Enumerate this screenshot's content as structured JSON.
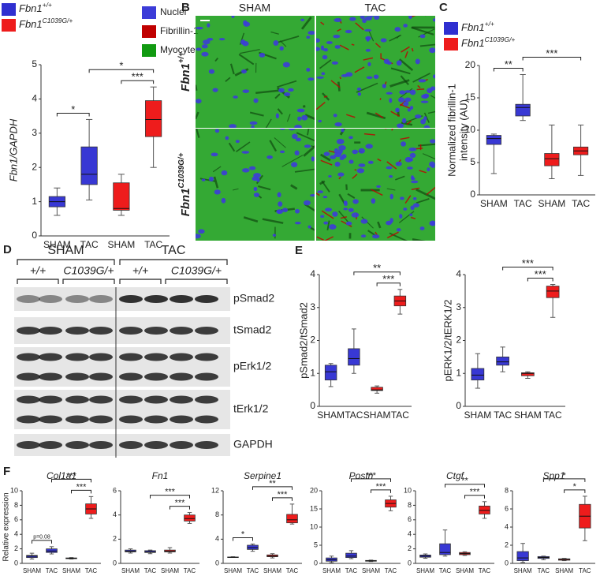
{
  "panel_labels": [
    "A",
    "B",
    "C",
    "D",
    "E",
    "F"
  ],
  "micrographs": {
    "columns": [
      "SHAM",
      "TAC"
    ],
    "rows": [
      {
        "name": "Fbn1",
        "sup": "+/+"
      },
      {
        "name": "Fbn1",
        "sup": "C1039G/+"
      }
    ],
    "legend": [
      {
        "name": "Nuclei",
        "color": "#3c3cd8"
      },
      {
        "name": "Fibrillin-1",
        "color": "#c00000"
      },
      {
        "name": "Myocyte",
        "color": "#119a11"
      }
    ]
  },
  "blot": {
    "groups": [
      "SHAM",
      "TAC"
    ],
    "genotypes": [
      "+/+",
      "C1039G/+",
      "+/+",
      "C1039G/+"
    ],
    "bands": [
      "pSmad2",
      "tSmad2",
      "pErk1/2",
      "tErk1/2",
      "GAPDH"
    ]
  },
  "chart_data": [
    {
      "type": "box",
      "ylabel": [
        "Fbn1/GAPDH"
      ],
      "ylabel_italic": true,
      "legend": [
        {
          "name": "Fbn1",
          "sup": "+/+",
          "color": "#2f2fd0"
        },
        {
          "name": "Fbn1",
          "sup": "C1039G/+",
          "color": "#ee1c1c"
        }
      ],
      "categories": [
        "SHAM",
        "TAC",
        "SHAM",
        "TAC"
      ],
      "boxes": [
        {
          "color": "#3838d4",
          "min": 0.6,
          "q1": 0.85,
          "median": 1.0,
          "q3": 1.15,
          "max": 1.4
        },
        {
          "color": "#3838d4",
          "min": 1.05,
          "q1": 1.5,
          "median": 1.8,
          "q3": 2.6,
          "max": 3.4
        },
        {
          "color": "#ee1c1c",
          "min": 0.6,
          "q1": 0.75,
          "median": 0.8,
          "q3": 1.55,
          "max": 1.8
        },
        {
          "color": "#ee1c1c",
          "min": 2.0,
          "q1": 2.9,
          "median": 3.4,
          "q3": 3.95,
          "max": 4.35
        }
      ],
      "annotations": [
        {
          "between": [
            0,
            1
          ],
          "text": "*"
        },
        {
          "between": [
            2,
            3
          ],
          "text": "***"
        },
        {
          "between": [
            1,
            3
          ],
          "text": "*"
        }
      ],
      "ylim": [
        0,
        5
      ],
      "yticks": [
        0,
        1,
        2,
        3,
        4,
        5
      ]
    },
    {
      "type": "box",
      "ylabel": [
        "Normalized fibrillin-1",
        "intensity (AU)"
      ],
      "ylabel_italic": false,
      "legend": [
        {
          "name": "Fbn1",
          "sup": "+/+",
          "color": "#2f2fd0"
        },
        {
          "name": "Fbn1",
          "sup": "C1039G/+",
          "color": "#ee1c1c"
        }
      ],
      "categories": [
        "SHAM",
        "TAC",
        "SHAM",
        "TAC"
      ],
      "boxes": [
        {
          "color": "#3838d4",
          "min": 3.3,
          "q1": 7.8,
          "median": 8.7,
          "q3": 9.2,
          "max": 9.4
        },
        {
          "color": "#3838d4",
          "min": 11.5,
          "q1": 12.2,
          "median": 13.5,
          "q3": 14.0,
          "max": 18.6
        },
        {
          "color": "#ee1c1c",
          "min": 2.5,
          "q1": 4.5,
          "median": 5.6,
          "q3": 6.4,
          "max": 10.8
        },
        {
          "color": "#ee1c1c",
          "min": 3.0,
          "q1": 6.2,
          "median": 6.8,
          "q3": 7.4,
          "max": 10.8
        }
      ],
      "annotations": [
        {
          "between": [
            0,
            1
          ],
          "text": "**"
        },
        {
          "between": [
            1,
            3
          ],
          "text": "***"
        }
      ],
      "ylim": [
        0,
        20
      ],
      "yticks": [
        0,
        5,
        10,
        15,
        20
      ]
    },
    {
      "type": "box",
      "ylabel": [
        "pSmad2/tSmad2"
      ],
      "ylabel_italic": false,
      "categories": [
        "SHAM",
        "TAC",
        "SHAM",
        "TAC"
      ],
      "boxes": [
        {
          "color": "#3838d4",
          "min": 0.6,
          "q1": 0.8,
          "median": 1.05,
          "q3": 1.25,
          "max": 1.3
        },
        {
          "color": "#3838d4",
          "min": 1.0,
          "q1": 1.25,
          "median": 1.45,
          "q3": 1.75,
          "max": 2.35
        },
        {
          "color": "#ee1c1c",
          "min": 0.4,
          "q1": 0.48,
          "median": 0.5,
          "q3": 0.58,
          "max": 0.62
        },
        {
          "color": "#ee1c1c",
          "min": 2.8,
          "q1": 3.05,
          "median": 3.2,
          "q3": 3.35,
          "max": 3.55
        }
      ],
      "annotations": [
        {
          "between": [
            2,
            3
          ],
          "text": "***"
        },
        {
          "between": [
            1,
            3
          ],
          "text": "**"
        }
      ],
      "ylim": [
        0,
        4
      ],
      "yticks": [
        0,
        1,
        2,
        3,
        4
      ]
    },
    {
      "type": "box",
      "ylabel": [
        "pERK1/2/tERK1/2"
      ],
      "ylabel_italic": false,
      "categories": [
        "SHAM",
        "TAC",
        "SHAM",
        "TAC"
      ],
      "boxes": [
        {
          "color": "#3838d4",
          "min": 0.55,
          "q1": 0.8,
          "median": 0.95,
          "q3": 1.15,
          "max": 1.6
        },
        {
          "color": "#3838d4",
          "min": 1.05,
          "q1": 1.25,
          "median": 1.35,
          "q3": 1.5,
          "max": 1.8
        },
        {
          "color": "#ee1c1c",
          "min": 0.85,
          "q1": 0.93,
          "median": 1.0,
          "q3": 1.02,
          "max": 1.05
        },
        {
          "color": "#ee1c1c",
          "min": 2.7,
          "q1": 3.3,
          "median": 3.5,
          "q3": 3.65,
          "max": 3.7
        }
      ],
      "annotations": [
        {
          "between": [
            2,
            3
          ],
          "text": "***"
        },
        {
          "between": [
            1,
            3
          ],
          "text": "***"
        }
      ],
      "ylim": [
        0,
        4
      ],
      "yticks": [
        0,
        1,
        2,
        3,
        4
      ]
    },
    {
      "type": "box",
      "title": "Col1a1",
      "ylabel": [
        "Relative expression"
      ],
      "ylabel_italic": false,
      "categories": [
        "SHAM",
        "TAC",
        "SHAM",
        "TAC"
      ],
      "boxes": [
        {
          "color": "#3838d4",
          "min": 0.6,
          "q1": 0.8,
          "median": 1.0,
          "q3": 1.1,
          "max": 1.4
        },
        {
          "color": "#3838d4",
          "min": 1.3,
          "q1": 1.5,
          "median": 1.7,
          "q3": 2.0,
          "max": 2.3
        },
        {
          "color": "#ee1c1c",
          "min": 0.6,
          "q1": 0.65,
          "median": 0.7,
          "q3": 0.75,
          "max": 0.8
        },
        {
          "color": "#ee1c1c",
          "min": 6.2,
          "q1": 6.8,
          "median": 7.5,
          "q3": 8.2,
          "max": 9.2
        }
      ],
      "annotations": [
        {
          "between": [
            0,
            1
          ],
          "text": "p=0.08"
        },
        {
          "between": [
            2,
            3
          ],
          "text": "***"
        },
        {
          "between": [
            1,
            3
          ],
          "text": "***"
        }
      ],
      "ylim": [
        0,
        10
      ],
      "yticks": [
        0,
        2,
        4,
        6,
        8,
        10
      ]
    },
    {
      "type": "box",
      "title": "Fn1",
      "categories": [
        "SHAM",
        "TAC",
        "SHAM",
        "TAC"
      ],
      "boxes": [
        {
          "color": "#3838d4",
          "min": 0.85,
          "q1": 0.95,
          "median": 1.0,
          "q3": 1.1,
          "max": 1.2
        },
        {
          "color": "#3838d4",
          "min": 0.8,
          "q1": 0.9,
          "median": 0.95,
          "q3": 1.05,
          "max": 1.1
        },
        {
          "color": "#ee1c1c",
          "min": 0.85,
          "q1": 0.95,
          "median": 1.0,
          "q3": 1.1,
          "max": 1.3
        },
        {
          "color": "#ee1c1c",
          "min": 3.3,
          "q1": 3.5,
          "median": 3.7,
          "q3": 4.0,
          "max": 4.2
        }
      ],
      "annotations": [
        {
          "between": [
            2,
            3
          ],
          "text": "***"
        },
        {
          "between": [
            1,
            3
          ],
          "text": "***"
        }
      ],
      "ylim": [
        0,
        6
      ],
      "yticks": [
        0,
        2,
        4,
        6
      ]
    },
    {
      "type": "box",
      "title": "Serpine1",
      "categories": [
        "SHAM",
        "TAC",
        "SHAM",
        "TAC"
      ],
      "boxes": [
        {
          "color": "#3838d4",
          "min": 1.0,
          "q1": 1.0,
          "median": 1.0,
          "q3": 1.05,
          "max": 1.1
        },
        {
          "color": "#3838d4",
          "min": 2.0,
          "q1": 2.3,
          "median": 2.6,
          "q3": 3.0,
          "max": 3.2
        },
        {
          "color": "#ee1c1c",
          "min": 0.9,
          "q1": 1.1,
          "median": 1.2,
          "q3": 1.4,
          "max": 1.6
        },
        {
          "color": "#ee1c1c",
          "min": 6.5,
          "q1": 6.7,
          "median": 7.2,
          "q3": 8.1,
          "max": 9.8
        }
      ],
      "annotations": [
        {
          "between": [
            0,
            1
          ],
          "text": "*"
        },
        {
          "between": [
            2,
            3
          ],
          "text": "***"
        },
        {
          "between": [
            1,
            3
          ],
          "text": "**"
        }
      ],
      "ylim": [
        0,
        12
      ],
      "yticks": [
        0,
        4,
        8,
        12
      ]
    },
    {
      "type": "box",
      "title": "Postn",
      "categories": [
        "SHAM",
        "TAC",
        "SHAM",
        "TAC"
      ],
      "boxes": [
        {
          "color": "#3838d4",
          "min": 0.2,
          "q1": 0.6,
          "median": 1.0,
          "q3": 1.5,
          "max": 2.0
        },
        {
          "color": "#3838d4",
          "min": 1.3,
          "q1": 1.6,
          "median": 2.0,
          "q3": 2.8,
          "max": 3.5
        },
        {
          "color": "#ee1c1c",
          "min": 0.5,
          "q1": 0.6,
          "median": 0.7,
          "q3": 0.8,
          "max": 0.9
        },
        {
          "color": "#ee1c1c",
          "min": 14.5,
          "q1": 15.5,
          "median": 16.5,
          "q3": 17.5,
          "max": 18.5
        }
      ],
      "annotations": [
        {
          "between": [
            2,
            3
          ],
          "text": "***"
        },
        {
          "between": [
            1,
            3
          ],
          "text": "***"
        }
      ],
      "ylim": [
        0,
        20
      ],
      "yticks": [
        0,
        5,
        10,
        15,
        20
      ]
    },
    {
      "type": "box",
      "title": "Ctgf",
      "categories": [
        "SHAM",
        "TAC",
        "SHAM",
        "TAC"
      ],
      "boxes": [
        {
          "color": "#3838d4",
          "min": 0.7,
          "q1": 0.85,
          "median": 1.0,
          "q3": 1.15,
          "max": 1.3
        },
        {
          "color": "#3838d4",
          "min": 1.0,
          "q1": 1.2,
          "median": 1.5,
          "q3": 2.7,
          "max": 4.6
        },
        {
          "color": "#ee1c1c",
          "min": 1.1,
          "q1": 1.2,
          "median": 1.35,
          "q3": 1.5,
          "max": 1.6
        },
        {
          "color": "#ee1c1c",
          "min": 6.2,
          "q1": 6.8,
          "median": 7.3,
          "q3": 7.9,
          "max": 8.5
        }
      ],
      "annotations": [
        {
          "between": [
            2,
            3
          ],
          "text": "***"
        },
        {
          "between": [
            1,
            3
          ],
          "text": "**"
        }
      ],
      "ylim": [
        0,
        10
      ],
      "yticks": [
        0,
        2,
        4,
        6,
        8,
        10
      ]
    },
    {
      "type": "box",
      "title": "Spp1",
      "categories": [
        "SHAM",
        "TAC",
        "SHAM",
        "TAC"
      ],
      "boxes": [
        {
          "color": "#3838d4",
          "min": 0.1,
          "q1": 0.3,
          "median": 0.6,
          "q3": 1.3,
          "max": 2.2
        },
        {
          "color": "#3838d4",
          "min": 0.4,
          "q1": 0.55,
          "median": 0.65,
          "q3": 0.75,
          "max": 0.8
        },
        {
          "color": "#ee1c1c",
          "min": 0.3,
          "q1": 0.35,
          "median": 0.45,
          "q3": 0.5,
          "max": 0.55
        },
        {
          "color": "#ee1c1c",
          "min": 2.5,
          "q1": 3.9,
          "median": 5.2,
          "q3": 6.5,
          "max": 7.4
        }
      ],
      "annotations": [
        {
          "between": [
            2,
            3
          ],
          "text": "*"
        },
        {
          "between": [
            1,
            3
          ],
          "text": "*"
        }
      ],
      "ylim": [
        0,
        8
      ],
      "yticks": [
        0,
        2,
        4,
        6,
        8
      ]
    }
  ]
}
